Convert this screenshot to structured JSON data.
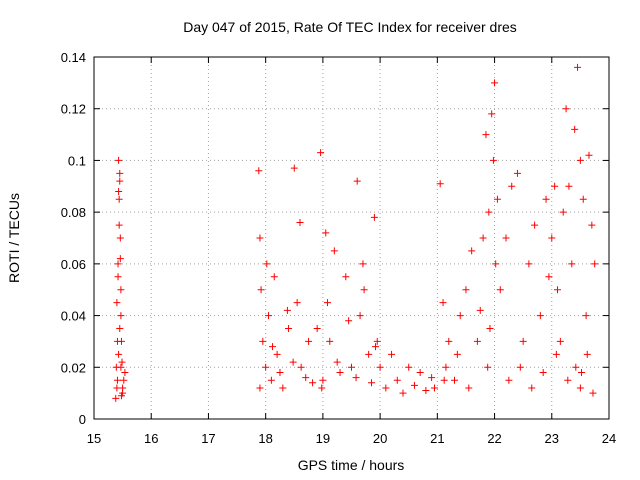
{
  "chart_data": {
    "type": "scatter",
    "title": "Day 047 of 2015, Rate Of TEC Index for receiver dres",
    "xlabel": "GPS time / hours",
    "ylabel": "ROTI / TECUs",
    "xlim": [
      15,
      24
    ],
    "ylim": [
      0,
      0.14
    ],
    "xticks": [
      15,
      16,
      17,
      18,
      19,
      20,
      21,
      22,
      23,
      24
    ],
    "xtick_labels": [
      "15",
      "16",
      "17",
      "18",
      "19",
      "20",
      "21",
      "22",
      "23",
      "24"
    ],
    "yticks": [
      0,
      0.02,
      0.04,
      0.06,
      0.08,
      0.1,
      0.12,
      0.14
    ],
    "ytick_labels": [
      "0",
      "0.02",
      "0.04",
      "0.06",
      "0.08",
      "0.1",
      "0.12",
      "0.14"
    ],
    "grid": true,
    "marker": "+",
    "color": "#ff0000",
    "series": [
      {
        "name": "ROTI",
        "x": [
          15.38,
          15.39,
          15.4,
          15.41,
          15.42,
          15.43,
          15.44,
          15.45,
          15.46,
          15.47,
          15.48,
          15.5,
          15.52,
          15.54,
          15.4,
          15.43,
          15.45,
          15.48,
          15.42,
          15.47,
          15.44,
          15.46,
          15.41,
          15.49,
          15.43,
          15.45,
          15.47,
          15.5,
          17.88,
          17.9,
          17.92,
          17.95,
          18.0,
          18.05,
          18.1,
          18.15,
          18.2,
          18.3,
          18.4,
          18.5,
          18.55,
          18.62,
          18.7,
          17.9,
          18.02,
          18.12,
          18.25,
          18.38,
          18.48,
          18.6,
          18.75,
          18.82,
          18.9,
          18.96,
          19.0,
          19.05,
          19.12,
          19.2,
          19.3,
          19.4,
          19.5,
          19.6,
          19.65,
          19.7,
          19.8,
          19.9,
          19.95,
          18.98,
          19.08,
          19.25,
          19.45,
          19.58,
          19.72,
          19.85,
          19.92,
          20.0,
          20.1,
          20.2,
          20.3,
          20.4,
          20.5,
          20.6,
          20.7,
          20.8,
          20.9,
          20.95,
          21.05,
          21.1,
          21.15,
          21.2,
          21.3,
          21.4,
          21.5,
          21.6,
          21.7,
          21.8,
          21.85,
          21.9,
          21.95,
          22.0,
          22.05,
          21.12,
          21.35,
          21.55,
          21.75,
          21.88,
          21.98,
          22.02,
          21.92,
          22.1,
          22.2,
          22.3,
          22.4,
          22.5,
          22.6,
          22.7,
          22.8,
          22.9,
          22.95,
          23.0,
          23.05,
          23.1,
          23.15,
          22.25,
          22.45,
          22.65,
          22.85,
          23.08,
          23.2,
          23.25,
          23.3,
          23.35,
          23.4,
          23.45,
          23.5,
          23.55,
          23.6,
          23.65,
          23.7,
          23.75,
          23.28,
          23.42,
          23.5,
          23.52,
          23.62,
          23.72
        ],
        "y": [
          0.008,
          0.02,
          0.045,
          0.03,
          0.06,
          0.1,
          0.085,
          0.095,
          0.07,
          0.05,
          0.03,
          0.012,
          0.015,
          0.018,
          0.012,
          0.025,
          0.035,
          0.009,
          0.055,
          0.04,
          0.075,
          0.062,
          0.015,
          0.022,
          0.088,
          0.092,
          0.02,
          0.01,
          0.096,
          0.07,
          0.05,
          0.03,
          0.02,
          0.04,
          0.015,
          0.055,
          0.025,
          0.012,
          0.035,
          0.097,
          0.045,
          0.02,
          0.016,
          0.012,
          0.06,
          0.028,
          0.018,
          0.042,
          0.022,
          0.076,
          0.03,
          0.014,
          0.035,
          0.103,
          0.015,
          0.072,
          0.03,
          0.065,
          0.018,
          0.055,
          0.02,
          0.092,
          0.04,
          0.06,
          0.025,
          0.078,
          0.03,
          0.012,
          0.045,
          0.022,
          0.038,
          0.016,
          0.05,
          0.014,
          0.028,
          0.02,
          0.012,
          0.025,
          0.015,
          0.01,
          0.02,
          0.013,
          0.018,
          0.011,
          0.016,
          0.012,
          0.091,
          0.045,
          0.02,
          0.03,
          0.015,
          0.04,
          0.05,
          0.065,
          0.03,
          0.07,
          0.11,
          0.08,
          0.118,
          0.13,
          0.085,
          0.015,
          0.025,
          0.012,
          0.042,
          0.02,
          0.1,
          0.06,
          0.035,
          0.05,
          0.07,
          0.09,
          0.095,
          0.03,
          0.06,
          0.075,
          0.04,
          0.085,
          0.055,
          0.07,
          0.09,
          0.05,
          0.03,
          0.015,
          0.02,
          0.012,
          0.018,
          0.025,
          0.08,
          0.12,
          0.09,
          0.06,
          0.112,
          0.136,
          0.1,
          0.085,
          0.04,
          0.102,
          0.075,
          0.06,
          0.015,
          0.02,
          0.012,
          0.018,
          0.025,
          0.01
        ]
      }
    ]
  }
}
